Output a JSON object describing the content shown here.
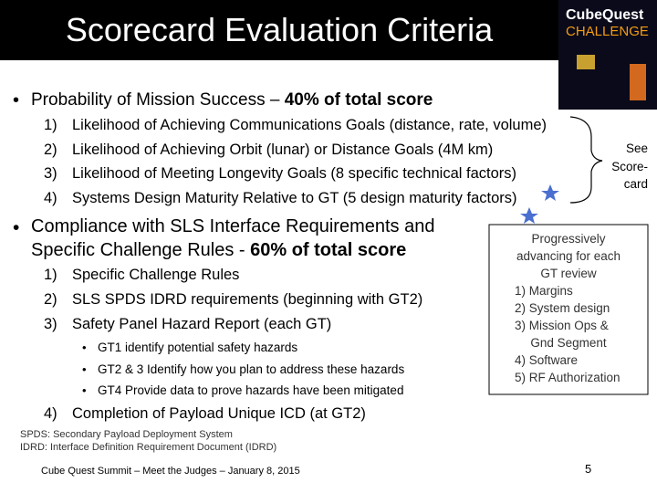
{
  "header": {
    "title": "Scorecard Evaluation Criteria",
    "logo": {
      "line1": "CubeQuest",
      "line2": "CHALLENGE"
    }
  },
  "sections": [
    {
      "bullet": "•",
      "text": [
        "Probability of Mission Success – "
      ],
      "emphasis": "40% of total score",
      "items": [
        {
          "number": "1)",
          "text": "Likelihood of Achieving Communications Goals (distance, rate, volume)"
        },
        {
          "number": "2)",
          "text": "Likelihood of Achieving Orbit (lunar) or Distance Goals (4M km)"
        },
        {
          "number": "3)",
          "text": "Likelihood of Meeting Longevity Goals (8 specific technical factors)"
        },
        {
          "number": "4)",
          "text": "Systems Design Maturity Relative to GT (5 design maturity factors)"
        }
      ]
    },
    {
      "bullet": "•",
      "text": [
        "Compliance with SLS Interface Requirements and",
        "Specific Challenge Rules - "
      ],
      "emphasis": "60% of total score",
      "items": [
        {
          "number": "1)",
          "text": "Specific Challenge Rules"
        },
        {
          "number": "2)",
          "text": "SLS SPDS IDRD requirements (beginning with GT2)"
        },
        {
          "number": "3)",
          "text": "Safety Panel Hazard Report (each GT)",
          "subitems": [
            {
              "bullet": "•",
              "text": "GT1 identify potential safety hazards"
            },
            {
              "bullet": "•",
              "text": "GT2 & 3 Identify how you plan to address these hazards"
            },
            {
              "bullet": "•",
              "text": "GT4 Provide data to prove hazards have been mitigated"
            }
          ]
        },
        {
          "number": "4)",
          "text": "Completion of Payload Unique ICD (at GT2)"
        }
      ]
    }
  ],
  "callouts": [
    {
      "lines": [
        "See",
        "Score-",
        "card"
      ]
    },
    {
      "lines": [
        "Progressively",
        "advancing for each",
        "GT review",
        "1) Margins",
        "2) System design",
        "3) Mission Ops &",
        "Gnd Segment",
        "4) Software",
        "5) RF Authorization"
      ]
    }
  ],
  "footnotes": [
    "SPDS: Secondary Payload Deployment System",
    "IDRD:  Interface Definition Requirement Document (IDRD)"
  ],
  "footer": {
    "text": "Cube Quest Summit – Meet the Judges – January 8, 2015",
    "page": "5"
  }
}
